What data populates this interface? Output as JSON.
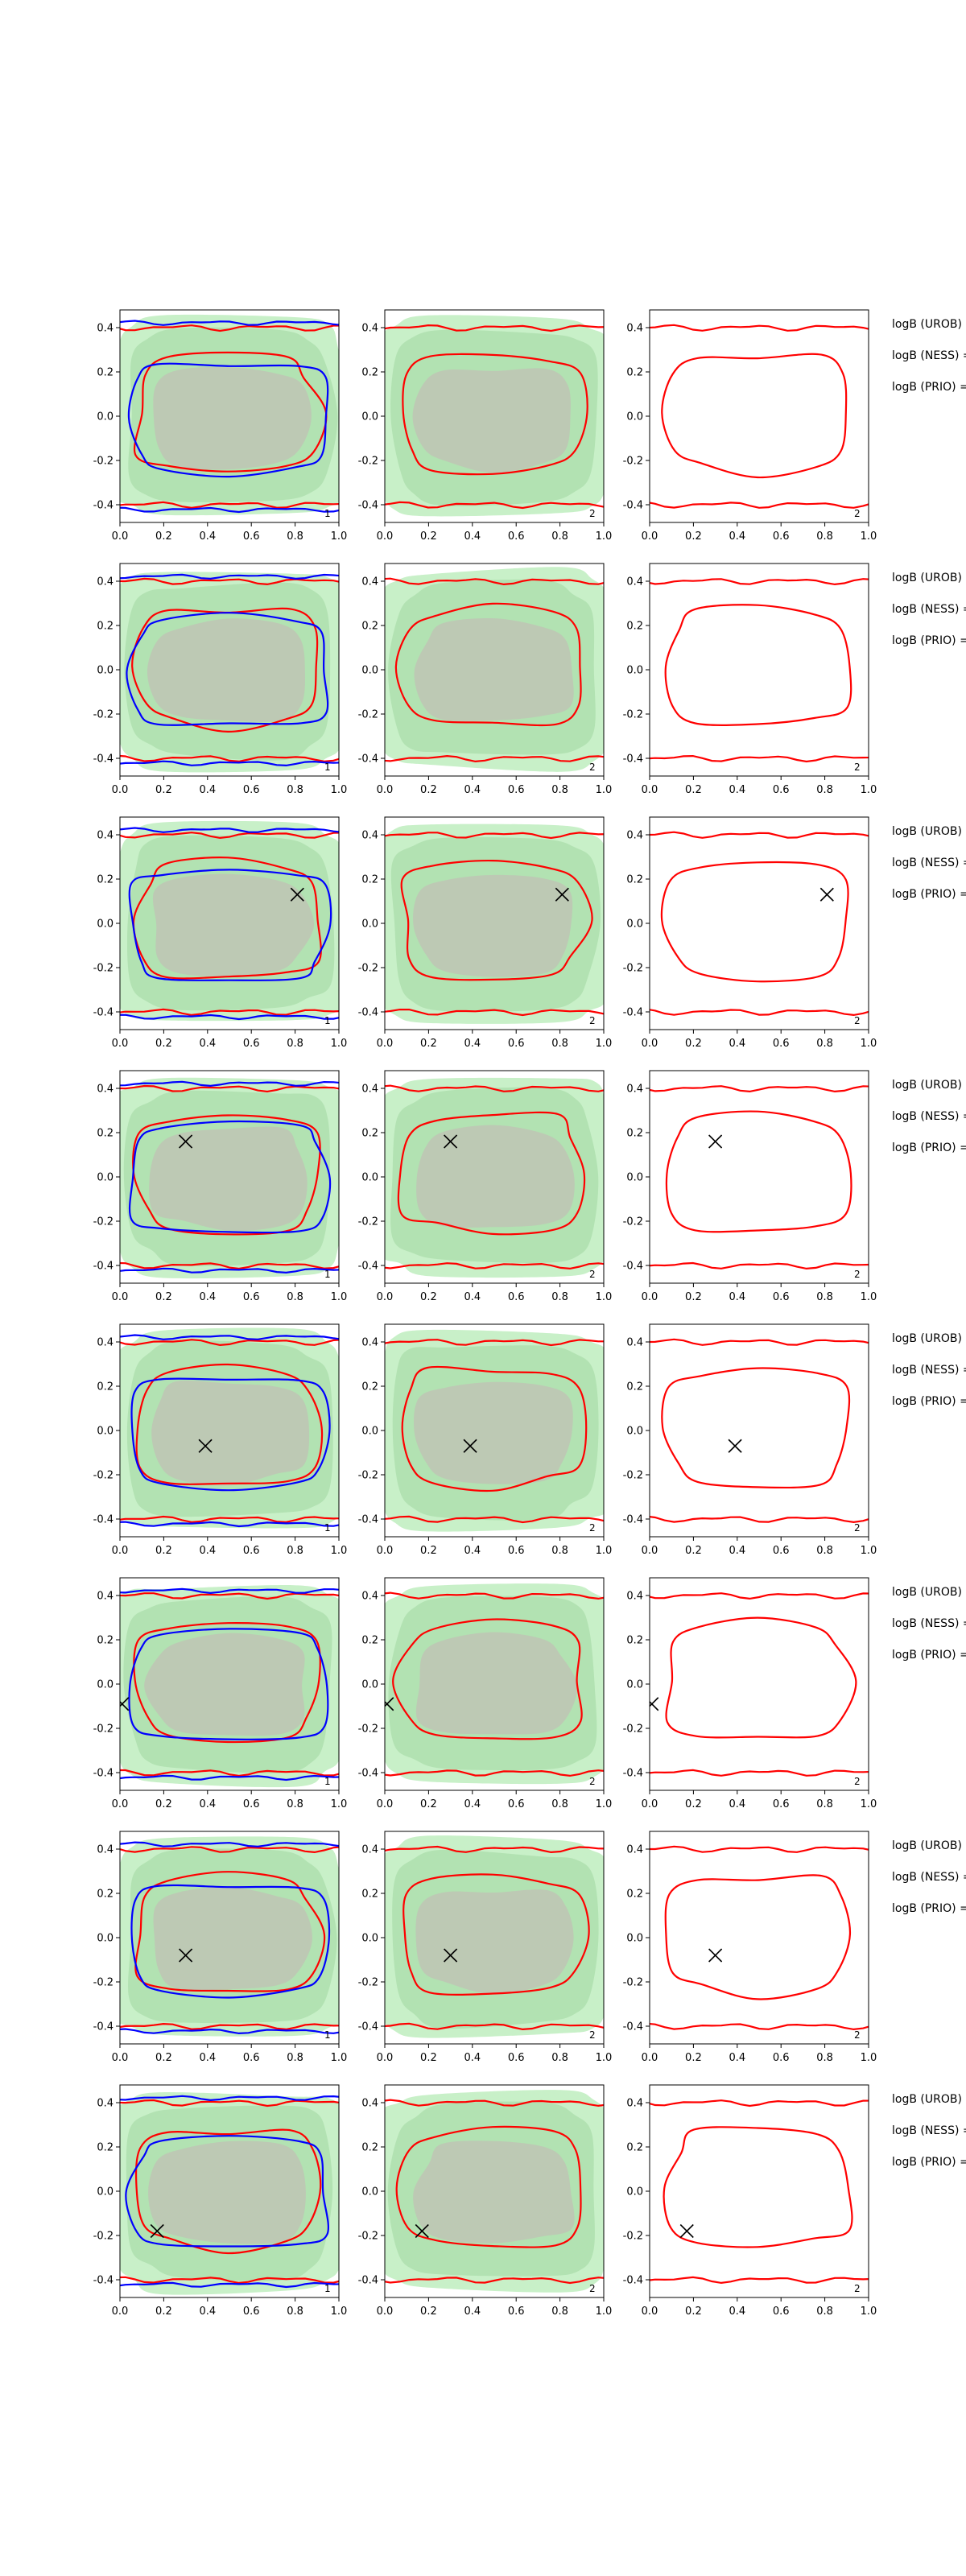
{
  "page": {
    "background": "#ffffff"
  },
  "colors": {
    "contour_red": "#ff0000",
    "contour_blue": "#0000ff",
    "fill_light": "#c8f0c8",
    "fill_mid": "#a8dca8",
    "fill_core": "#c0c0b4",
    "marker": "#000000",
    "axes": "#000000"
  },
  "labels": {
    "uroB": "logB (UROB) =",
    "ness": "logB (NESS) =",
    "prio": "logB (PRIO) ="
  },
  "chart_data": {
    "type": "contour-grid",
    "rows": 8,
    "cols": 3,
    "xlim": [
      0.0,
      1.0
    ],
    "ylim": [
      -0.48,
      0.48
    ],
    "xticks": [
      "0.0",
      "0.2",
      "0.4",
      "0.6",
      "0.8",
      "1.0"
    ],
    "yticks": [
      "0.4",
      "0.2",
      "0.0",
      "-0.2",
      "-0.4"
    ],
    "panel_ids": [
      "1",
      "2",
      "2"
    ],
    "markers": [
      {
        "x": null,
        "y": null
      },
      {
        "x": null,
        "y": null
      },
      {
        "x": 0.81,
        "y": 0.13
      },
      {
        "x": 0.3,
        "y": 0.16
      },
      {
        "x": 0.39,
        "y": -0.07
      },
      {
        "x": 0.01,
        "y": -0.09
      },
      {
        "x": 0.3,
        "y": -0.08
      },
      {
        "x": 0.17,
        "y": -0.18
      }
    ]
  }
}
